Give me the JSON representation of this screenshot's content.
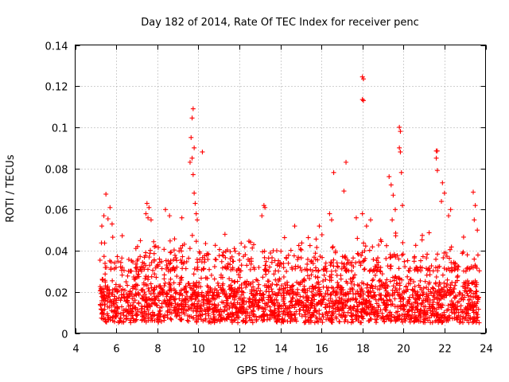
{
  "chart_data": {
    "type": "scatter",
    "title": "Day 182 of 2014, Rate Of TEC Index for receiver penc",
    "xlabel": "GPS time / hours",
    "ylabel": "ROTI / TECUs",
    "xlim": [
      4,
      24
    ],
    "ylim": [
      0,
      0.14
    ],
    "xticks": [
      4,
      6,
      8,
      10,
      12,
      14,
      16,
      18,
      20,
      22,
      24
    ],
    "xtick_labels": [
      "4",
      "6",
      "8",
      "10",
      "12",
      "14",
      "16",
      "18",
      "20",
      "22",
      "24"
    ],
    "yticks": [
      0,
      0.02,
      0.04,
      0.06,
      0.08,
      0.1,
      0.12,
      0.14
    ],
    "ytick_labels": [
      "0",
      "0.02",
      "0.04",
      "0.06",
      "0.08",
      "0.1",
      "0.12",
      "0.14"
    ],
    "grid": true,
    "marker": "plus",
    "color": "#ff0000",
    "series": [
      {
        "name": "ROTI",
        "density_profile": {
          "description": "dense band of points between about 0.005 and 0.03 TECU/min from 5.2 h to 23.7 h, sparser points up to about 0.05",
          "x_range": [
            5.2,
            23.7
          ],
          "band_low": 0.005,
          "band_high": 0.03,
          "sparse_high": 0.05
        },
        "points": [
          [
            5.5,
            0.0675
          ],
          [
            5.6,
            0.0555
          ],
          [
            5.7,
            0.061
          ],
          [
            5.8,
            0.053
          ],
          [
            5.4,
            0.057
          ],
          [
            5.3,
            0.052
          ],
          [
            7.5,
            0.063
          ],
          [
            7.6,
            0.061
          ],
          [
            7.45,
            0.058
          ],
          [
            7.55,
            0.056
          ],
          [
            7.7,
            0.055
          ],
          [
            8.4,
            0.06
          ],
          [
            8.6,
            0.057
          ],
          [
            9.2,
            0.056
          ],
          [
            9.6,
            0.083
          ],
          [
            9.65,
            0.095
          ],
          [
            9.7,
            0.1045
          ],
          [
            9.75,
            0.109
          ],
          [
            9.8,
            0.09
          ],
          [
            9.7,
            0.085
          ],
          [
            9.75,
            0.077
          ],
          [
            9.8,
            0.068
          ],
          [
            9.85,
            0.063
          ],
          [
            9.9,
            0.058
          ],
          [
            9.95,
            0.055
          ],
          [
            10.2,
            0.088
          ],
          [
            11.3,
            0.048
          ],
          [
            13.2,
            0.062
          ],
          [
            13.25,
            0.061
          ],
          [
            13.1,
            0.057
          ],
          [
            14.7,
            0.052
          ],
          [
            15.9,
            0.052
          ],
          [
            16.4,
            0.058
          ],
          [
            16.5,
            0.055
          ],
          [
            16.6,
            0.078
          ],
          [
            17.2,
            0.083
          ],
          [
            17.1,
            0.069
          ],
          [
            17.7,
            0.056
          ],
          [
            18.0,
            0.1245
          ],
          [
            18.05,
            0.1235
          ],
          [
            18.0,
            0.1135
          ],
          [
            18.05,
            0.113
          ],
          [
            18.0,
            0.058
          ],
          [
            18.2,
            0.052
          ],
          [
            18.4,
            0.055
          ],
          [
            19.3,
            0.076
          ],
          [
            19.4,
            0.072
          ],
          [
            19.5,
            0.067
          ],
          [
            19.6,
            0.06
          ],
          [
            19.45,
            0.055
          ],
          [
            19.8,
            0.1
          ],
          [
            19.85,
            0.098
          ],
          [
            19.8,
            0.09
          ],
          [
            19.85,
            0.088
          ],
          [
            19.9,
            0.078
          ],
          [
            19.95,
            0.062
          ],
          [
            21.6,
            0.0885
          ],
          [
            21.65,
            0.0885
          ],
          [
            21.6,
            0.085
          ],
          [
            21.65,
            0.079
          ],
          [
            21.9,
            0.073
          ],
          [
            22.0,
            0.068
          ],
          [
            21.85,
            0.064
          ],
          [
            22.3,
            0.06
          ],
          [
            22.2,
            0.057
          ],
          [
            23.4,
            0.0685
          ],
          [
            23.5,
            0.062
          ],
          [
            23.45,
            0.055
          ],
          [
            23.6,
            0.05
          ]
        ]
      }
    ]
  }
}
